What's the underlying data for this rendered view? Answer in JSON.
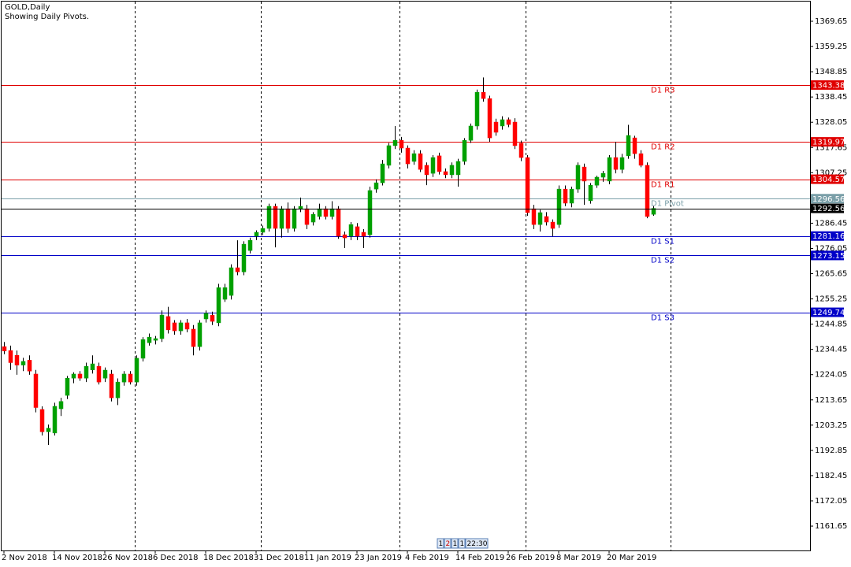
{
  "chart_data": {
    "type": "candlestick",
    "title": "GOLD,Daily",
    "subtitle": "Showing Daily Pivots.",
    "categories": [
      "2 Nov 2018",
      null,
      null,
      null,
      null,
      null,
      null,
      null,
      "14 Nov 2018",
      null,
      null,
      null,
      null,
      null,
      null,
      null,
      "26 Nov 2018",
      null,
      null,
      null,
      null,
      null,
      null,
      null,
      "6 Dec 2018",
      null,
      null,
      null,
      null,
      null,
      null,
      null,
      "18 Dec 2018",
      null,
      null,
      null,
      null,
      null,
      null,
      null,
      "31 Dec 2018",
      null,
      null,
      null,
      null,
      null,
      null,
      null,
      "11 Jan 2019",
      null,
      null,
      null,
      null,
      null,
      null,
      null,
      "23 Jan 2019",
      null,
      null,
      null,
      null,
      null,
      null,
      null,
      "4 Feb 2019",
      null,
      null,
      null,
      null,
      null,
      null,
      null,
      "14 Feb 2019",
      null,
      null,
      null,
      null,
      null,
      null,
      null,
      "26 Feb 2019",
      null,
      null,
      null,
      null,
      null,
      null,
      null,
      "8 Mar 2019",
      null,
      null,
      null,
      null,
      null,
      null,
      null,
      "20 Mar 2019",
      null,
      null,
      null,
      null,
      null,
      null,
      null
    ],
    "open": [
      1235.6,
      1234.0,
      1232.0,
      1228.0,
      1230.0,
      1224.3,
      1209.7,
      1200.5,
      1200.0,
      1210.0,
      1215.5,
      1222.6,
      1224.3,
      1222.6,
      1226.0,
      1227.5,
      1222.6,
      1224.3,
      1214.5,
      1221.0,
      1224.3,
      1221.0,
      1230.8,
      1237.2,
      1238.2,
      1238.9,
      1248.0,
      1245.4,
      1242.1,
      1245.4,
      1242.8,
      1235.6,
      1247.0,
      1248.5,
      1245.4,
      1255.1,
      1256.7,
      1268.1,
      1266.4,
      1275.2,
      1281.1,
      1282.7,
      1284.3,
      1293.4,
      1284.3,
      1292.4,
      1284.3,
      1292.4,
      1292.4,
      1286.9,
      1289.2,
      1292.4,
      1289.2,
      1292.4,
      1281.7,
      1281.1,
      1285.0,
      1282.7,
      1281.7,
      1300.5,
      1303.1,
      1310.3,
      1318.4,
      1320.6,
      1317.4,
      1311.9,
      1315.1,
      1310.3,
      1307.0,
      1314.2,
      1307.7,
      1306.4,
      1306.4,
      1311.9,
      1320.6,
      1326.5,
      1340.4,
      1337.8,
      1328.1,
      1326.5,
      1329.1,
      1328.1,
      1319.4,
      1313.5,
      1292.4,
      1285.9,
      1289.2,
      1286.9,
      1285.9,
      1300.5,
      1294.7,
      1300.5,
      1309.6,
      1295.7,
      1302.1,
      1305.4,
      1303.8,
      1313.5,
      1308.6,
      1314.2,
      1321.6,
      1315.1,
      1310.3,
      1290.1
    ],
    "high": [
      1237.5,
      1236.0,
      1234.0,
      1231.0,
      1232.0,
      1226.0,
      1211.0,
      1203.5,
      1212.5,
      1214.5,
      1223.5,
      1225.0,
      1225.5,
      1229.0,
      1232.0,
      1229.0,
      1227.0,
      1226.0,
      1222.5,
      1225.5,
      1225.5,
      1232.0,
      1239.5,
      1241.0,
      1240.0,
      1250.5,
      1252.0,
      1246.5,
      1246.5,
      1247.0,
      1244.5,
      1246.5,
      1250.5,
      1250.0,
      1261.5,
      1261.5,
      1269.5,
      1279.4,
      1279.0,
      1280.5,
      1283.5,
      1285.5,
      1294.5,
      1294.5,
      1293.5,
      1295.0,
      1293.5,
      1297.0,
      1294.0,
      1291.0,
      1294.5,
      1293.5,
      1295.5,
      1293.5,
      1283.0,
      1286.9,
      1286.5,
      1284.0,
      1301.5,
      1304.5,
      1312.5,
      1319.5,
      1326.5,
      1322.0,
      1318.5,
      1316.5,
      1316.5,
      1311.5,
      1314.5,
      1315.5,
      1309.0,
      1311.5,
      1313.0,
      1321.5,
      1327.5,
      1341.5,
      1346.5,
      1339.0,
      1329.5,
      1330.5,
      1330.0,
      1329.7,
      1320.5,
      1314.5,
      1294.0,
      1292.0,
      1291.0,
      1288.0,
      1302.0,
      1302.0,
      1301.5,
      1311.5,
      1311.0,
      1303.0,
      1306.0,
      1308.0,
      1314.5,
      1320.0,
      1315.0,
      1327.0,
      1322.5,
      1316.5,
      1311.5,
      1293.5
    ],
    "low": [
      1232.5,
      1226.0,
      1224.0,
      1225.5,
      1224.0,
      1208.5,
      1199.0,
      1195.1,
      1199.0,
      1207.0,
      1214.0,
      1220.5,
      1221.5,
      1221.0,
      1224.5,
      1220.0,
      1221.0,
      1213.0,
      1211.5,
      1219.5,
      1220.0,
      1219.5,
      1229.5,
      1236.0,
      1236.5,
      1237.5,
      1241.0,
      1240.5,
      1240.5,
      1241.5,
      1232.0,
      1234.0,
      1245.5,
      1244.5,
      1244.0,
      1254.0,
      1255.0,
      1265.0,
      1265.0,
      1274.0,
      1279.5,
      1281.5,
      1283.0,
      1276.5,
      1280.5,
      1282.5,
      1283.0,
      1291.0,
      1284.0,
      1285.5,
      1288.0,
      1288.0,
      1288.0,
      1280.0,
      1276.2,
      1279.5,
      1279.5,
      1276.2,
      1280.5,
      1299.0,
      1302.0,
      1309.0,
      1317.0,
      1315.5,
      1309.0,
      1310.5,
      1307.5,
      1302.1,
      1305.5,
      1306.5,
      1305.0,
      1305.0,
      1301.5,
      1310.5,
      1319.5,
      1325.0,
      1336.5,
      1320.0,
      1322.5,
      1325.0,
      1326.0,
      1317.0,
      1312.0,
      1289.5,
      1284.0,
      1283.0,
      1285.5,
      1281.0,
      1284.5,
      1293.5,
      1293.0,
      1299.0,
      1294.0,
      1294.5,
      1301.0,
      1303.5,
      1302.5,
      1307.0,
      1307.0,
      1313.0,
      1313.0,
      1309.5,
      1288.5,
      1289.5
    ],
    "close": [
      1233.8,
      1229.0,
      1228.0,
      1229.5,
      1225.5,
      1210.5,
      1200.5,
      1202.0,
      1211.0,
      1213.0,
      1222.6,
      1224.3,
      1222.6,
      1227.5,
      1228.5,
      1221.0,
      1225.9,
      1214.5,
      1221.0,
      1224.3,
      1221.0,
      1230.8,
      1238.5,
      1239.5,
      1238.9,
      1248.6,
      1242.5,
      1242.1,
      1245.4,
      1242.8,
      1235.6,
      1245.4,
      1249.3,
      1246.0,
      1259.9,
      1259.9,
      1268.1,
      1266.4,
      1277.8,
      1279.4,
      1282.7,
      1284.3,
      1293.4,
      1284.3,
      1292.4,
      1284.3,
      1292.4,
      1293.4,
      1285.9,
      1290.1,
      1292.4,
      1289.2,
      1292.4,
      1281.1,
      1280.4,
      1285.9,
      1281.1,
      1281.1,
      1299.9,
      1303.1,
      1310.9,
      1318.4,
      1320.6,
      1317.4,
      1310.9,
      1315.1,
      1308.6,
      1306.4,
      1313.5,
      1307.7,
      1306.4,
      1310.3,
      1311.9,
      1320.6,
      1326.5,
      1340.4,
      1337.8,
      1321.6,
      1323.9,
      1329.1,
      1327.1,
      1318.4,
      1313.5,
      1290.8,
      1285.9,
      1290.8,
      1286.9,
      1284.3,
      1300.5,
      1294.7,
      1300.5,
      1310.3,
      1303.8,
      1302.1,
      1305.4,
      1307.0,
      1313.5,
      1308.6,
      1313.5,
      1322.6,
      1315.1,
      1310.3,
      1289.2,
      1292.56
    ],
    "up_color": "#00a000",
    "down_color": "#ff0000",
    "levels": [
      {
        "name": "D1 R3",
        "value": 1343.38,
        "color": "#e00000"
      },
      {
        "name": "D1 R2",
        "value": 1319.97,
        "color": "#e00000"
      },
      {
        "name": "D1 R1",
        "value": 1304.57,
        "color": "#e00000"
      },
      {
        "name": "D1 Pivot",
        "value": 1296.56,
        "color": "#7a9fa8"
      },
      {
        "name": "D1 S1",
        "value": 1281.16,
        "color": "#0000c8"
      },
      {
        "name": "D1 S2",
        "value": 1273.15,
        "color": "#0000c8"
      },
      {
        "name": "D1 S3",
        "value": 1249.74,
        "color": "#0000c8"
      }
    ],
    "current_price": {
      "value": 1292.56,
      "color": "#000000"
    },
    "ylim": [
      1151.61,
      1377.76
    ],
    "yticks": [
      1369.65,
      1359.25,
      1348.85,
      1338.45,
      1328.05,
      1317.65,
      1307.25,
      1286.45,
      1276.05,
      1265.65,
      1255.25,
      1244.85,
      1234.45,
      1224.05,
      1213.65,
      1203.25,
      1192.85,
      1182.45,
      1172.05,
      1161.65
    ],
    "toolbar": [
      "1",
      "2",
      "1",
      "1",
      "22:30"
    ]
  }
}
